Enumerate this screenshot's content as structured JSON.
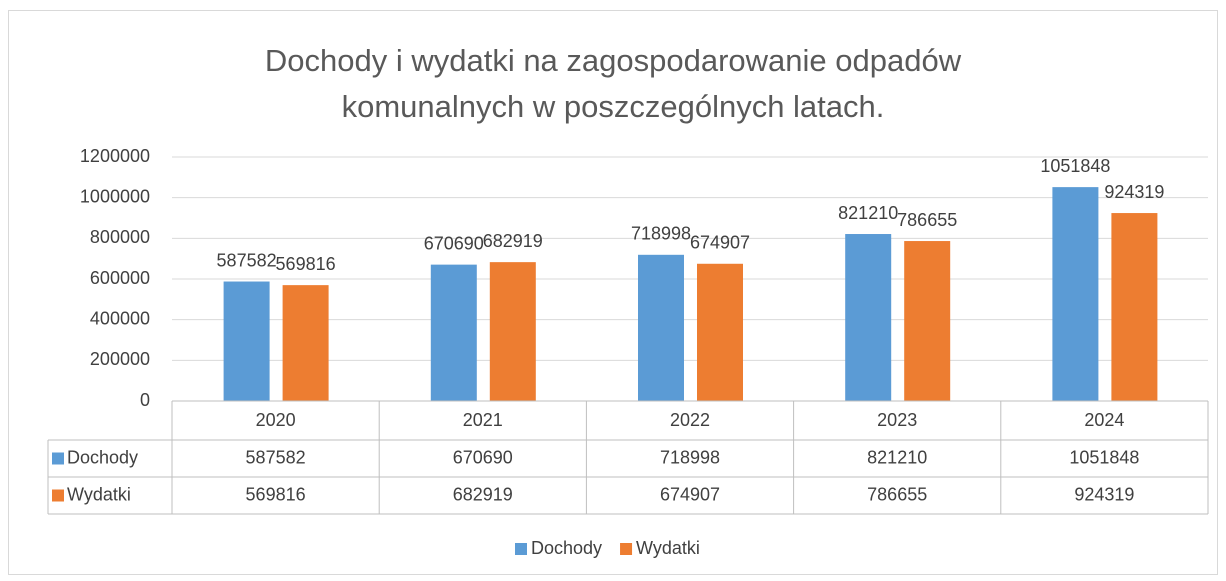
{
  "chart_data": {
    "type": "bar",
    "title": "Dochody i wydatki na zagospodarowanie odpadów komunalnych w poszczególnych latach.",
    "categories": [
      "2020",
      "2021",
      "2022",
      "2023",
      "2024"
    ],
    "series": [
      {
        "name": "Dochody",
        "color": "#5b9bd5",
        "values": [
          587582,
          670690,
          718998,
          821210,
          1051848
        ]
      },
      {
        "name": "Wydatki",
        "color": "#ed7d31",
        "values": [
          569816,
          682919,
          674907,
          786655,
          924319
        ]
      }
    ],
    "ylim": [
      0,
      1200000
    ],
    "yticks": [
      0,
      200000,
      400000,
      600000,
      800000,
      1000000,
      1200000
    ],
    "grid": true,
    "legend": "bottom",
    "data_table": true
  }
}
